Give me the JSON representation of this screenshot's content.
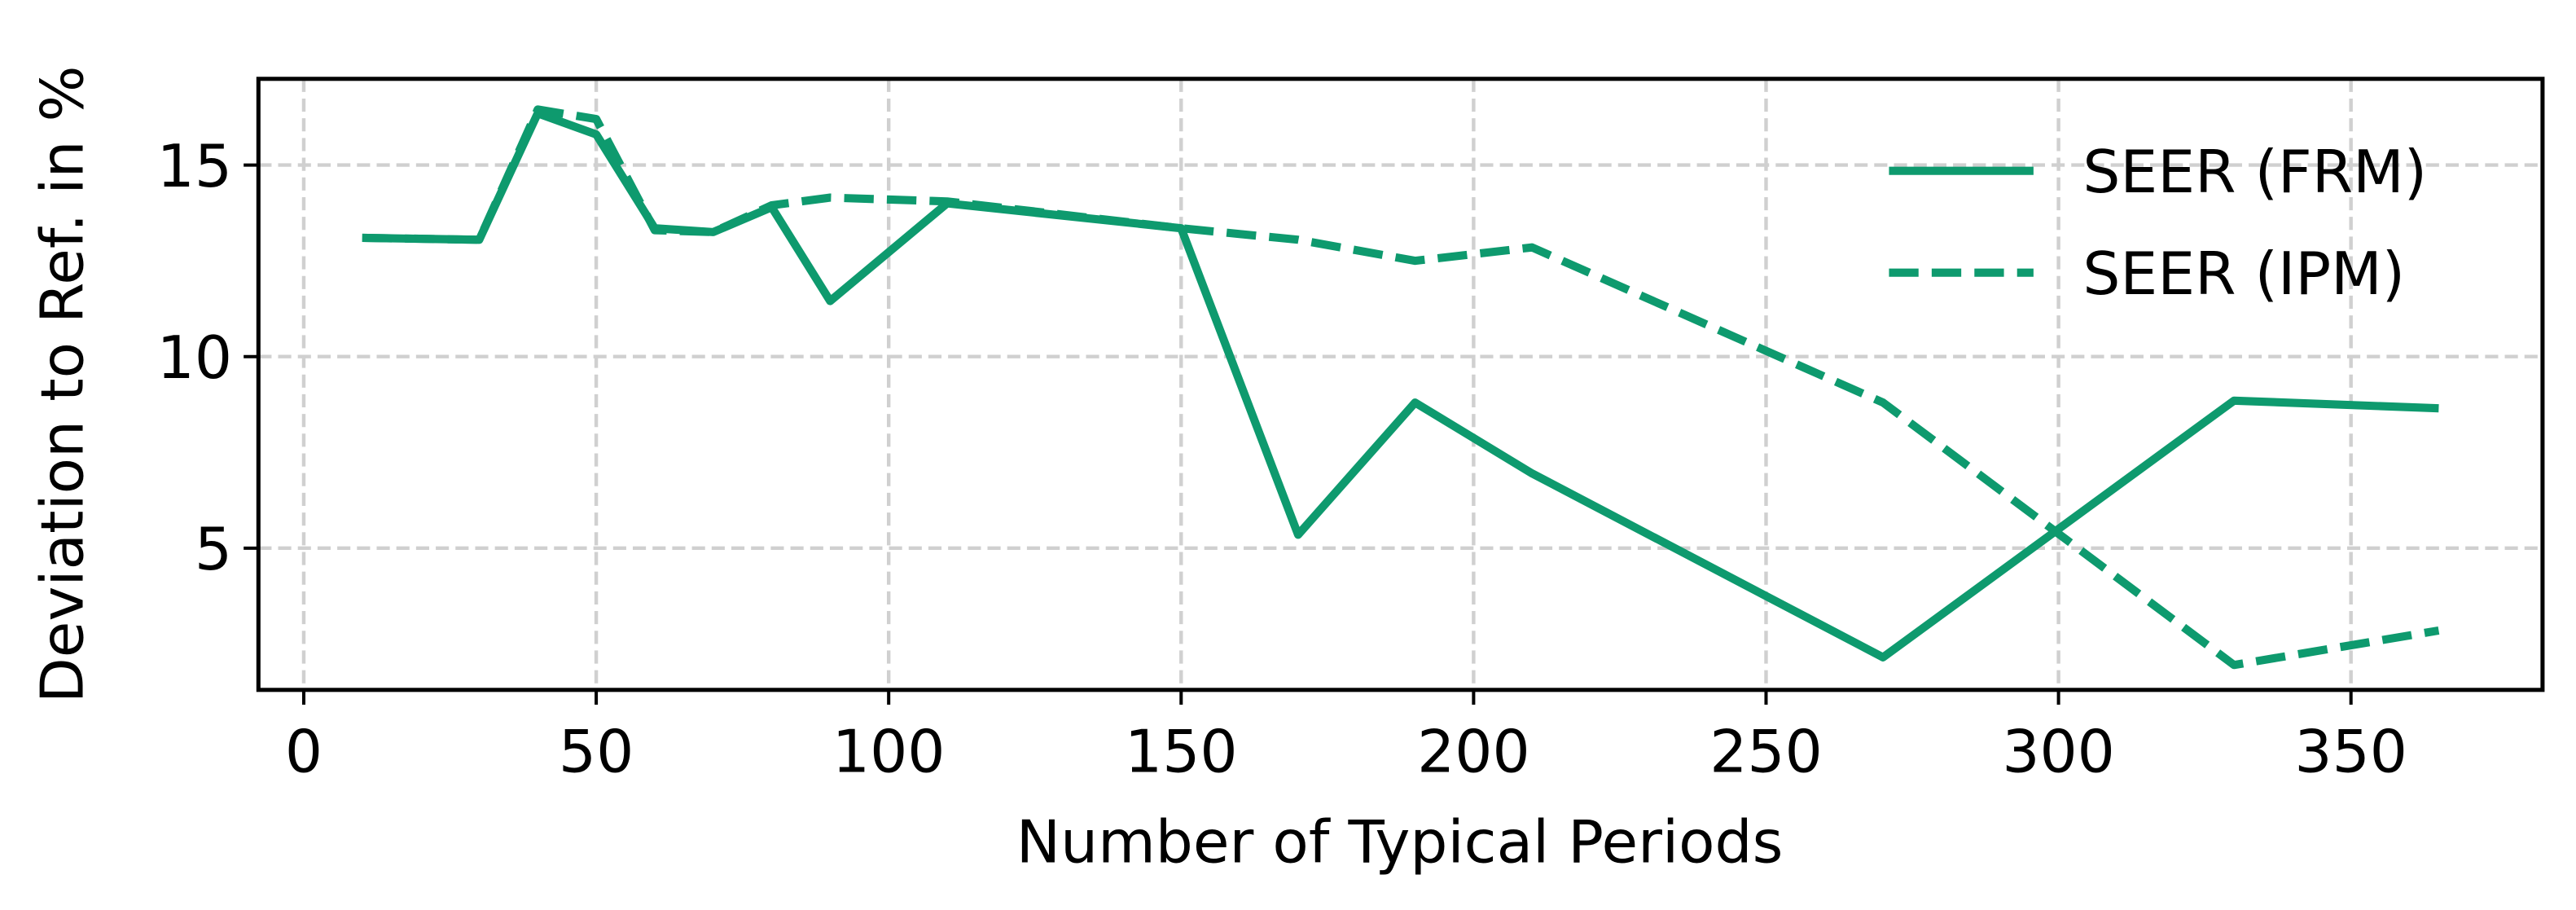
{
  "chart_data": {
    "type": "line",
    "xlabel": "Number of Typical Periods",
    "ylabel": "Deviation to Ref. in %",
    "x": [
      10,
      30,
      40,
      50,
      60,
      70,
      80,
      90,
      110,
      150,
      170,
      190,
      210,
      270,
      330,
      365
    ],
    "series": [
      {
        "name": "SEER (FRM)",
        "color": "#0e9a6e",
        "dash": "solid",
        "values": [
          13.1,
          13.05,
          16.35,
          15.8,
          13.35,
          13.25,
          13.9,
          11.45,
          14.0,
          13.35,
          5.35,
          8.8,
          6.95,
          2.15,
          8.85,
          8.65
        ]
      },
      {
        "name": "SEER (IPM)",
        "color": "#0e9a6e",
        "dash": "dashed",
        "values": [
          13.1,
          13.05,
          16.45,
          16.2,
          13.3,
          13.25,
          13.95,
          14.15,
          14.05,
          13.35,
          13.05,
          12.5,
          12.85,
          8.8,
          1.95,
          2.85
        ]
      }
    ],
    "xlim": [
      -7.75,
      382.75
    ],
    "xticks": [
      0,
      50,
      100,
      150,
      200,
      250,
      300,
      350
    ],
    "ylim": [
      1.3,
      17.25
    ],
    "yticks": [
      5,
      10,
      15
    ],
    "grid": true,
    "legend": "upper right"
  }
}
